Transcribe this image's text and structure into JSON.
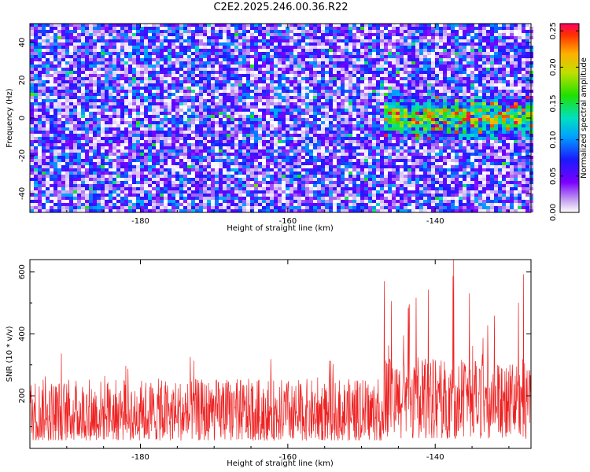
{
  "title": "C2E2.2025.246.00.36.R22",
  "chart_data": [
    {
      "type": "heatmap",
      "xlabel": "Height of straight line (km)",
      "ylabel": "Frequency (Hz)",
      "xlim": [
        -195,
        -127
      ],
      "ylim": [
        -50,
        50
      ],
      "xticks": [
        -180,
        -160,
        -140
      ],
      "yticks": [
        -40,
        -20,
        0,
        20,
        40
      ],
      "colorbar": {
        "label": "Normalized spectral amplitude",
        "range": [
          0,
          0.26
        ],
        "ticks": [
          "0.00",
          "0.05",
          "0.10",
          "0.15",
          "0.20",
          "0.25"
        ],
        "tick_values": [
          0,
          0.05,
          0.1,
          0.15,
          0.2,
          0.25
        ]
      },
      "signal_region": {
        "x": [
          -147,
          -127
        ],
        "y": [
          -12,
          12
        ],
        "peak_amplitude": 0.26
      }
    },
    {
      "type": "line",
      "xlabel": "Height of straight line (km)",
      "ylabel": "SNR (10 * v/v)",
      "xlim": [
        -195,
        -127
      ],
      "ylim": [
        30,
        640
      ],
      "xticks": [
        -180,
        -160,
        -140
      ],
      "yticks": [
        200,
        400,
        600
      ],
      "series": [
        {
          "name": "SNR",
          "color": "#ee2222",
          "baseline_mean": 140,
          "baseline_max": 360,
          "elevated_region": [
            -147,
            -127
          ],
          "elevated_mean": 190,
          "peak": 640
        }
      ]
    }
  ]
}
